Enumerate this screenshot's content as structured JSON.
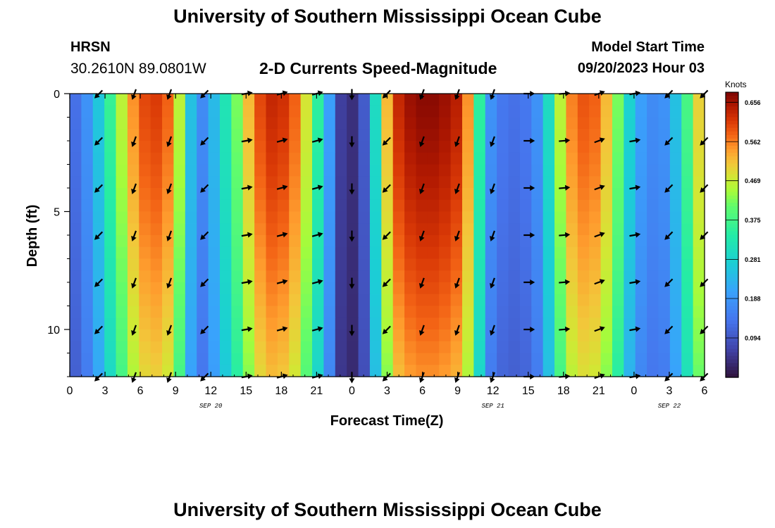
{
  "header": {
    "title": "University of Southern Mississippi Ocean Cube",
    "station": "HRSN",
    "coords": "30.2610N  89.0801W",
    "subtitle": "2-D Currents Speed-Magnitude",
    "model_label": "Model Start Time",
    "model_time": "09/20/2023 Hour 03"
  },
  "footer": {
    "title": "University of Southern Mississippi Ocean Cube"
  },
  "chart_data": {
    "type": "heatmap",
    "title": "2-D Currents Speed-Magnitude",
    "xlabel": "Forecast Time(Z)",
    "ylabel": "Depth (ft)",
    "x_range_hours": [
      0,
      54
    ],
    "y_range": [
      0,
      12
    ],
    "x_ticks": [
      "0",
      "3",
      "6",
      "9",
      "12",
      "15",
      "18",
      "21",
      "0",
      "3",
      "6",
      "9",
      "12",
      "15",
      "18",
      "21",
      "0",
      "3",
      "6"
    ],
    "y_ticks": [
      "0",
      "5",
      "10"
    ],
    "date_labels": [
      {
        "label": "SEP 20",
        "hour": 12
      },
      {
        "label": "SEP 21",
        "hour": 36
      },
      {
        "label": "SEP 22",
        "hour": 51
      }
    ],
    "colorbar": {
      "unit": "Knots",
      "min": 0.0,
      "max": 0.68,
      "ticks": [
        "0.656",
        "0.562",
        "0.469",
        "0.375",
        "0.281",
        "0.188",
        "0.094"
      ]
    },
    "speed_profile": {
      "hours": [
        0,
        1,
        2,
        3,
        4,
        5,
        6,
        7,
        8,
        9,
        10,
        11,
        12,
        13,
        14,
        15,
        16,
        17,
        18,
        19,
        20,
        21,
        22,
        23,
        24,
        25,
        26,
        27,
        28,
        29,
        30,
        31,
        32,
        33,
        34,
        35,
        36,
        37,
        38,
        39,
        40,
        41,
        42,
        43,
        44,
        45,
        46,
        47,
        48,
        49,
        50,
        51,
        52,
        53,
        54
      ],
      "surface_knots": [
        0.13,
        0.18,
        0.26,
        0.36,
        0.46,
        0.55,
        0.6,
        0.61,
        0.58,
        0.46,
        0.25,
        0.17,
        0.24,
        0.32,
        0.42,
        0.52,
        0.6,
        0.63,
        0.62,
        0.58,
        0.48,
        0.35,
        0.2,
        0.06,
        0.04,
        0.1,
        0.3,
        0.52,
        0.63,
        0.66,
        0.67,
        0.67,
        0.66,
        0.64,
        0.55,
        0.35,
        0.18,
        0.14,
        0.13,
        0.14,
        0.18,
        0.3,
        0.46,
        0.56,
        0.59,
        0.58,
        0.52,
        0.42,
        0.28,
        0.2,
        0.17,
        0.18,
        0.25,
        0.38,
        0.5
      ],
      "bottom_factor": 0.82
    },
    "vectors": {
      "depths": [
        0,
        2,
        4,
        6,
        8,
        10,
        12
      ],
      "hours": [
        2.5,
        5.5,
        8.5,
        11.5,
        15,
        18,
        21,
        24,
        27,
        30,
        33,
        36,
        39,
        42,
        45,
        48,
        51,
        54
      ],
      "direction_deg": [
        225,
        200,
        200,
        225,
        80,
        75,
        75,
        180,
        225,
        200,
        200,
        200,
        90,
        85,
        70,
        80,
        225,
        225
      ]
    }
  }
}
